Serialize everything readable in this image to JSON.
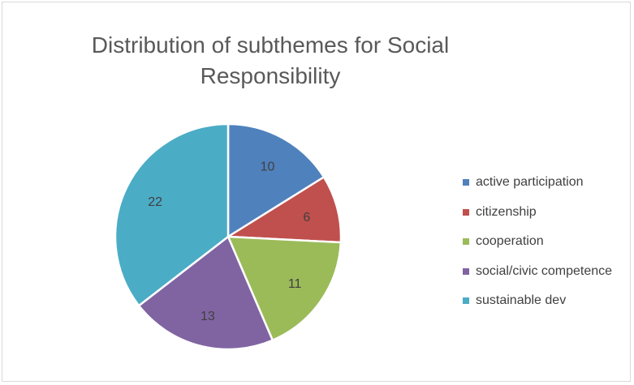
{
  "chart_data": {
    "type": "pie",
    "title": "Distribution of subthemes for Social Responsibility",
    "categories": [
      "active participation",
      "citizenship",
      "cooperation",
      "social/civic competence",
      "sustainable dev"
    ],
    "values": [
      10,
      6,
      11,
      13,
      22
    ],
    "colors": [
      "#4f81bd",
      "#c0504d",
      "#9bbb59",
      "#8064a2",
      "#4bacc6"
    ],
    "data_labels": [
      "10",
      "6",
      "11",
      "13",
      "22"
    ],
    "legend_position": "right"
  }
}
